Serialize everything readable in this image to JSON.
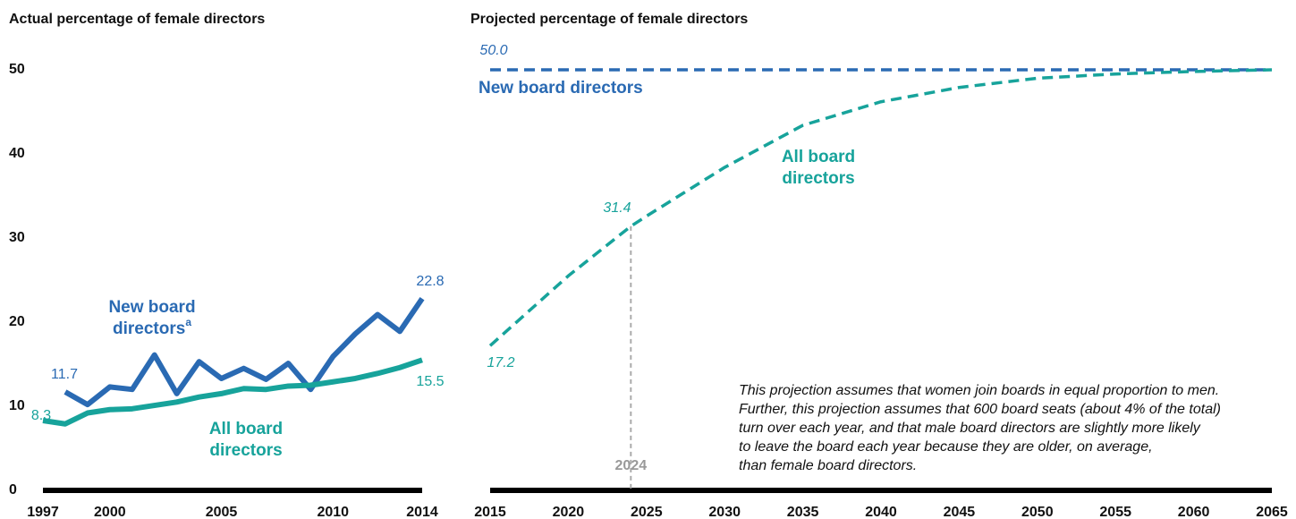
{
  "chart_data": [
    {
      "type": "line",
      "title": "Actual percentage of female directors",
      "x": [
        1997,
        1998,
        1999,
        2000,
        2001,
        2002,
        2003,
        2004,
        2005,
        2006,
        2007,
        2008,
        2009,
        2010,
        2011,
        2012,
        2013,
        2014
      ],
      "xlim": [
        1997,
        2014
      ],
      "xticks": [
        1997,
        2000,
        2005,
        2010,
        2014
      ],
      "ylim": [
        0,
        50
      ],
      "yticks": [
        0,
        10,
        20,
        30,
        40,
        50
      ],
      "series": [
        {
          "label": [
            "New board",
            "directors"
          ],
          "label_note": "a",
          "color": "#2a6ab3",
          "dashed": false,
          "values": [
            null,
            11.7,
            10.2,
            12.3,
            12.0,
            16.1,
            11.5,
            15.3,
            13.3,
            14.5,
            13.2,
            15.1,
            12.0,
            15.9,
            18.6,
            20.9,
            18.9,
            22.8
          ],
          "value_labels": [
            null,
            "11.7",
            null,
            null,
            null,
            null,
            null,
            null,
            null,
            null,
            null,
            null,
            null,
            null,
            null,
            null,
            null,
            "22.8"
          ]
        },
        {
          "label": [
            "All board",
            "directors"
          ],
          "color": "#17a39b",
          "dashed": false,
          "values": [
            8.3,
            7.9,
            9.2,
            9.6,
            9.7,
            10.1,
            10.5,
            11.1,
            11.5,
            12.1,
            12.0,
            12.4,
            12.5,
            12.9,
            13.3,
            13.9,
            14.6,
            15.5
          ],
          "value_labels": [
            "8.3",
            null,
            null,
            null,
            null,
            null,
            null,
            null,
            null,
            null,
            null,
            null,
            null,
            null,
            null,
            null,
            null,
            "15.5"
          ]
        }
      ]
    },
    {
      "type": "line",
      "title": "Projected percentage of female directors",
      "xlim": [
        2015,
        2065
      ],
      "xticks": [
        2015,
        2020,
        2025,
        2030,
        2035,
        2040,
        2045,
        2050,
        2055,
        2060,
        2065
      ],
      "ylim": [
        0,
        50
      ],
      "vline": 2024,
      "series": [
        {
          "label": [
            "New board directors"
          ],
          "color": "#2a6ab3",
          "dashed": true,
          "x": [
            2015,
            2065
          ],
          "values": [
            50,
            50
          ],
          "value_labels": [
            "50.0",
            null
          ]
        },
        {
          "label": [
            "All board",
            "directors"
          ],
          "color": "#17a39b",
          "dashed": true,
          "x": [
            2015,
            2020,
            2024,
            2025,
            2030,
            2035,
            2040,
            2045,
            2050,
            2055,
            2060,
            2065
          ],
          "values": [
            17.2,
            25.5,
            31.4,
            32.6,
            38.4,
            43.4,
            46.2,
            47.9,
            49.0,
            49.5,
            49.8,
            50
          ],
          "value_labels": [
            "17.2",
            null,
            "31.4",
            null,
            null,
            null,
            null,
            null,
            null,
            null,
            null,
            null
          ]
        }
      ],
      "note": [
        "This projection assumes that women join boards in equal proportion to men.",
        "Further, this projection assumes that 600 board seats (about 4% of the total)",
        "turn over each year, and that male board directors are slightly more likely",
        "to leave the board each year because they are older, on average,",
        "than female board directors."
      ]
    }
  ]
}
